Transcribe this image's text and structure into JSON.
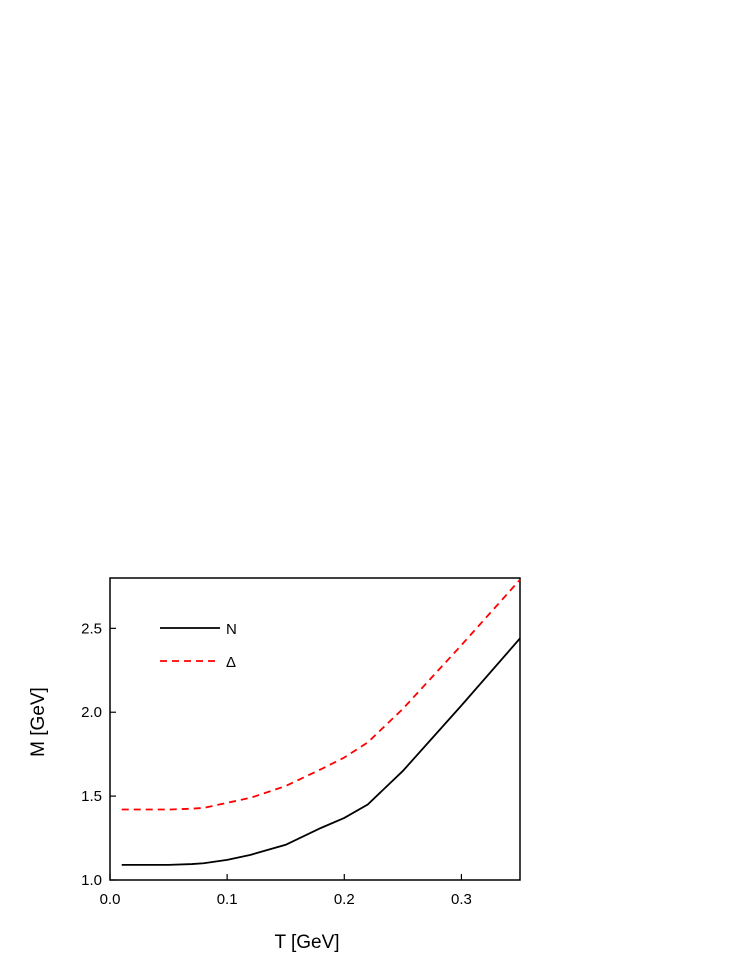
{
  "chart_data": {
    "type": "line",
    "x_label": "T [GeV]",
    "y_label": "M [GeV]",
    "x": [
      0.01,
      0.03,
      0.05,
      0.07,
      0.08,
      0.1,
      0.12,
      0.15,
      0.18,
      0.2,
      0.22,
      0.25,
      0.3,
      0.35
    ],
    "series": [
      {
        "name": "N",
        "color": "#000000",
        "dash": false,
        "values": [
          1.09,
          1.09,
          1.09,
          1.095,
          1.1,
          1.12,
          1.15,
          1.21,
          1.31,
          1.37,
          1.45,
          1.65,
          2.04,
          2.44
        ]
      },
      {
        "name": "Δ",
        "color": "#ff0000",
        "dash": true,
        "values": [
          1.42,
          1.42,
          1.42,
          1.425,
          1.43,
          1.46,
          1.49,
          1.56,
          1.66,
          1.73,
          1.82,
          2.02,
          2.4,
          2.79
        ]
      }
    ],
    "xlim": [
      0,
      0.35
    ],
    "ylim": [
      1.0,
      2.8
    ],
    "xticks": [
      {
        "value": 0,
        "label": "0.0"
      },
      0.1,
      0.2,
      0.3
    ],
    "yticks": [
      {
        "value": 1,
        "label": "1.0"
      },
      1.5,
      {
        "value": 2,
        "label": "2.0"
      },
      2.5
    ]
  }
}
